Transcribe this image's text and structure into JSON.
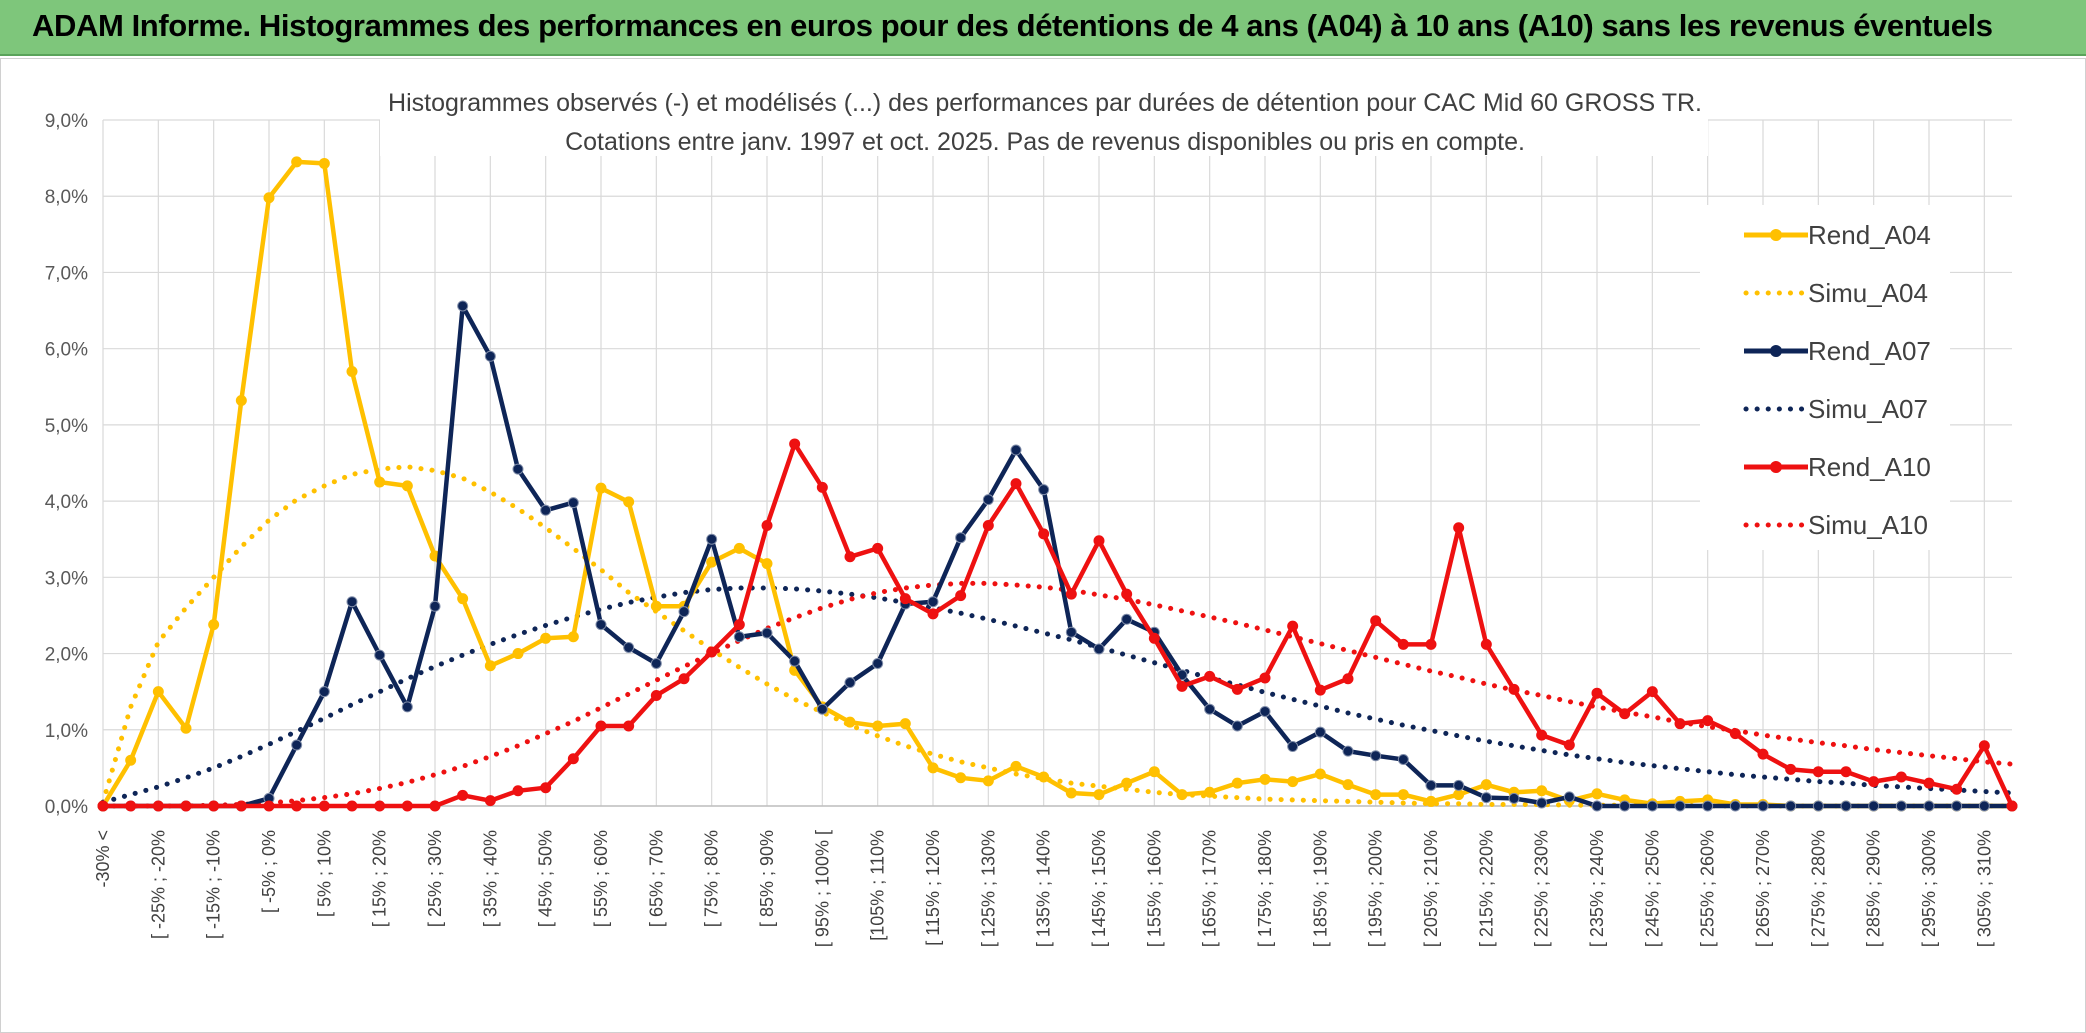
{
  "banner": {
    "title": "ADAM Informe. Histogrammes des performances en euros pour des détentions de 4 ans (A04) à 10 ans (A10) sans les revenus éventuels",
    "background": "#7ec67b"
  },
  "chart_data": {
    "type": "line",
    "title_line1": "Histogrammes observés (-) et modélisés (...) des performances par durées de détention pour CAC Mid 60 GROSS TR.",
    "title_line2": "Cotations entre janv. 1997 et oct. 2025. Pas de revenus disponibles ou pris en compte.",
    "ylim": [
      0,
      9
    ],
    "yticks": [
      "0,0%",
      "1,0%",
      "2,0%",
      "3,0%",
      "4,0%",
      "5,0%",
      "6,0%",
      "7,0%",
      "8,0%",
      "9,0%"
    ],
    "grid": true,
    "legend_position": "right",
    "categories": [
      "-30% <",
      "[ -30% ; -25% [",
      "[ -25% ; -20%",
      "[ -20% ; -15% [",
      "[ -15% ; -10%",
      "[ -10% ; -5% [",
      "[ -5% ; 0%",
      "[ 0% ; 5% [",
      "[ 5% ; 10%",
      "[ 10% ; 15% [",
      "[ 15% ; 20%",
      "[ 20% ; 25% [",
      "[ 25% ; 30%",
      "[ 30% ; 35% [",
      "[ 35% ; 40%",
      "[ 40% ; 45% [",
      "[ 45% ; 50%",
      "[ 50% ; 55% [",
      "[ 55% ; 60%",
      "[ 60% ; 65% [",
      "[ 65% ; 70%",
      "[ 70% ; 75% [",
      "[ 75% ; 80%",
      "[ 80% ; 85% [",
      "[ 85% ; 90%",
      "[ 90% ; 95% [",
      "[ 95% ; 100% [",
      "[ 100% ; 105% [",
      "[ 105% ; 110%",
      "[ 110% ; 115% [",
      "[ 115% ; 120%",
      "[ 120% ; 125% [",
      "[ 125% ; 130%",
      "[ 130% ; 135% [",
      "[ 135% ; 140%",
      "[ 140% ; 145% [",
      "[ 145% ; 150%",
      "[ 150% ; 155% [",
      "[ 155% ; 160%",
      "[ 160% ; 165% [",
      "[ 165% ; 170%",
      "[ 170% ; 175% [",
      "[ 175% ; 180%",
      "[ 180% ; 185% [",
      "[ 185% ; 190%",
      "[ 190% ; 195% [",
      "[ 195% ; 200%",
      "[ 200% ; 205% [",
      "[ 205% ; 210%",
      "[ 210% ; 215% [",
      "[ 215% ; 220%",
      "[ 220% ; 225% [",
      "[ 225% ; 230%",
      "[ 230% ; 235% [",
      "[ 235% ; 240%",
      "[ 240% ; 245% [",
      "[ 245% ; 250%",
      "[ 250% ; 255% [",
      "[ 255% ; 260%",
      "[ 260% ; 265% [",
      "[ 265% ; 270%",
      "[ 270% ; 275% [",
      "[ 275% ; 280%",
      "[ 280% ; 285% [",
      "[ 285% ; 290%",
      "[ 290% ; 295% [",
      "[ 295% ; 300%",
      "[ 300% ; 305% [",
      "[ 305% ; 310%",
      "[ 310% ; 315% ["
    ],
    "visible_tick_labels": [
      "-30% <",
      "[ -25% ; -20%",
      "[ -15% ; -10%",
      "[ -5% ; 0%",
      "[ 5% ; 10%",
      "[ 15% ; 20%",
      "[ 25% ; 30%",
      "[ 35% ; 40%",
      "[ 45% ; 50%",
      "[ 55% ; 60%",
      "[ 65% ; 70%",
      "[ 75% ; 80%",
      "[ 85% ; 90%",
      "[ 95% ; 100% [",
      "[105% ; 110%",
      "[ 115% ; 120%",
      "[ 125% ; 130%",
      "[ 135% ; 140%",
      "[ 145% ; 150%",
      "[ 155% ; 160%",
      "[ 165% ; 170%",
      "[ 175% ; 180%",
      "[ 185% ; 190%",
      "[ 195% ; 200%",
      "[ 205% ; 210%",
      "[ 215% ; 220%",
      "[ 225% ; 230%",
      "[ 235% ; 240%",
      "[ 245% ; 250%",
      "[ 255% ; 260%",
      "[ 265% ; 270%",
      "[ 275% ; 280%",
      "[ 285% ; 290%",
      "[ 295% ; 300%",
      "[ 305% ; 310%"
    ],
    "series": [
      {
        "name": "Rend_A04",
        "style": "solid",
        "markers": true,
        "color": "#ffc000",
        "values": [
          0.0,
          0.6,
          1.5,
          1.02,
          2.38,
          5.32,
          7.98,
          8.45,
          8.43,
          5.7,
          4.25,
          4.2,
          3.28,
          2.72,
          1.84,
          2.0,
          2.2,
          2.22,
          4.17,
          3.99,
          2.62,
          2.62,
          3.2,
          3.38,
          3.18,
          1.78,
          1.3,
          1.1,
          1.05,
          1.08,
          0.5,
          0.37,
          0.33,
          0.52,
          0.38,
          0.17,
          0.15,
          0.3,
          0.45,
          0.15,
          0.18,
          0.3,
          0.35,
          0.32,
          0.42,
          0.28,
          0.15,
          0.15,
          0.06,
          0.15,
          0.28,
          0.18,
          0.2,
          0.07,
          0.16,
          0.08,
          0.03,
          0.06,
          0.08,
          0.02,
          0.02,
          0.0,
          0.0,
          0.0,
          0.0,
          0.0,
          0.0,
          0.0,
          0.0,
          0.0
        ]
      },
      {
        "name": "Simu_A04",
        "style": "dotted",
        "markers": false,
        "color": "#ffc000",
        "values": [
          0.05,
          1.3,
          2.15,
          2.6,
          3.0,
          3.4,
          3.75,
          4.02,
          4.2,
          4.35,
          4.42,
          4.45,
          4.4,
          4.3,
          4.12,
          3.9,
          3.65,
          3.38,
          3.1,
          2.8,
          2.55,
          2.3,
          2.05,
          1.82,
          1.6,
          1.4,
          1.23,
          1.06,
          0.92,
          0.79,
          0.68,
          0.58,
          0.5,
          0.42,
          0.36,
          0.3,
          0.26,
          0.22,
          0.18,
          0.15,
          0.13,
          0.11,
          0.09,
          0.08,
          0.07,
          0.06,
          0.05,
          0.04,
          0.03,
          0.03,
          0.02,
          0.02,
          0.02,
          0.01,
          0.01,
          0.01,
          0.01,
          0.01,
          0.0,
          0.0,
          0.0,
          0.0,
          0.0,
          0.0,
          0.0,
          0.0,
          0.0,
          0.0,
          0.0,
          0.0
        ]
      },
      {
        "name": "Rend_A07",
        "style": "solid",
        "markers": true,
        "color": "#0e2557",
        "values": [
          0.0,
          0.0,
          0.0,
          0.0,
          0.0,
          0.0,
          0.1,
          0.8,
          1.5,
          2.68,
          1.98,
          1.3,
          2.62,
          6.56,
          5.9,
          4.42,
          3.88,
          3.98,
          2.38,
          2.08,
          1.87,
          2.55,
          3.5,
          2.22,
          2.27,
          1.9,
          1.27,
          1.62,
          1.87,
          2.65,
          2.68,
          3.52,
          4.02,
          4.67,
          4.15,
          2.28,
          2.06,
          2.45,
          2.28,
          1.72,
          1.27,
          1.05,
          1.24,
          0.78,
          0.97,
          0.72,
          0.66,
          0.61,
          0.27,
          0.27,
          0.11,
          0.1,
          0.04,
          0.12,
          0.0,
          0.0,
          0.0,
          0.0,
          0.0,
          0.0,
          0.0,
          0.0,
          0.0,
          0.0,
          0.0,
          0.0,
          0.0,
          0.0,
          0.0,
          0.0
        ]
      },
      {
        "name": "Simu_A07",
        "style": "dotted",
        "markers": false,
        "color": "#0e2557",
        "values": [
          0.05,
          0.15,
          0.25,
          0.37,
          0.5,
          0.65,
          0.81,
          0.98,
          1.15,
          1.33,
          1.5,
          1.67,
          1.83,
          1.98,
          2.12,
          2.25,
          2.37,
          2.48,
          2.58,
          2.67,
          2.74,
          2.8,
          2.84,
          2.86,
          2.86,
          2.85,
          2.82,
          2.78,
          2.73,
          2.67,
          2.6,
          2.53,
          2.45,
          2.36,
          2.27,
          2.18,
          2.08,
          1.98,
          1.88,
          1.78,
          1.68,
          1.59,
          1.49,
          1.4,
          1.31,
          1.22,
          1.14,
          1.06,
          0.99,
          0.92,
          0.85,
          0.79,
          0.73,
          0.67,
          0.62,
          0.57,
          0.53,
          0.49,
          0.45,
          0.41,
          0.38,
          0.35,
          0.32,
          0.3,
          0.27,
          0.25,
          0.23,
          0.21,
          0.19,
          0.17
        ]
      },
      {
        "name": "Rend_A10",
        "style": "solid",
        "markers": true,
        "color": "#ee1111",
        "values": [
          0.0,
          0.0,
          0.0,
          0.0,
          0.0,
          0.0,
          0.0,
          0.0,
          0.0,
          0.0,
          0.0,
          0.0,
          0.0,
          0.14,
          0.07,
          0.2,
          0.24,
          0.62,
          1.05,
          1.05,
          1.45,
          1.67,
          2.02,
          2.38,
          3.68,
          4.75,
          4.18,
          3.27,
          3.38,
          2.72,
          2.52,
          2.76,
          3.68,
          4.23,
          3.57,
          2.78,
          3.48,
          2.78,
          2.2,
          1.57,
          1.7,
          1.53,
          1.68,
          2.36,
          1.52,
          1.67,
          2.43,
          2.12,
          2.12,
          3.65,
          2.12,
          1.53,
          0.93,
          0.8,
          1.48,
          1.21,
          1.5,
          1.08,
          1.12,
          0.95,
          0.68,
          0.48,
          0.45,
          0.45,
          0.32,
          0.38,
          0.3,
          0.22,
          0.79,
          0.0
        ]
      },
      {
        "name": "Simu_A10",
        "style": "dotted",
        "markers": false,
        "color": "#ee1111",
        "values": [
          0.0,
          0.0,
          0.0,
          0.0,
          0.01,
          0.02,
          0.04,
          0.07,
          0.11,
          0.16,
          0.23,
          0.31,
          0.41,
          0.52,
          0.65,
          0.79,
          0.95,
          1.11,
          1.29,
          1.47,
          1.65,
          1.83,
          2.0,
          2.17,
          2.33,
          2.47,
          2.6,
          2.71,
          2.8,
          2.86,
          2.9,
          2.92,
          2.92,
          2.9,
          2.87,
          2.83,
          2.77,
          2.71,
          2.64,
          2.56,
          2.48,
          2.4,
          2.31,
          2.22,
          2.13,
          2.04,
          1.95,
          1.86,
          1.77,
          1.69,
          1.6,
          1.52,
          1.45,
          1.37,
          1.3,
          1.23,
          1.17,
          1.1,
          1.04,
          0.99,
          0.93,
          0.88,
          0.83,
          0.79,
          0.74,
          0.7,
          0.66,
          0.62,
          0.58,
          0.55
        ]
      }
    ]
  }
}
